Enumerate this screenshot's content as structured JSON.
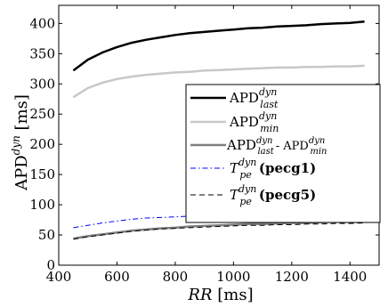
{
  "chart_data": {
    "type": "line",
    "xlabel": "RR [ms]",
    "ylabel": "APD^dyn [ms]",
    "xlim": [
      400,
      1500
    ],
    "ylim": [
      0,
      430
    ],
    "xticks": [
      400,
      600,
      800,
      1000,
      1200,
      1400
    ],
    "yticks": [
      0,
      50,
      100,
      150,
      200,
      250,
      300,
      350,
      400
    ],
    "grid": false,
    "legend_placement": "center-right",
    "x": [
      450,
      500,
      550,
      600,
      650,
      700,
      750,
      800,
      850,
      900,
      950,
      1000,
      1050,
      1100,
      1150,
      1200,
      1250,
      1300,
      1350,
      1400,
      1450
    ],
    "series": [
      {
        "name": "APD^dyn_last",
        "color": "#000000",
        "dash": "solid",
        "values": [
          322,
          340,
          352,
          361,
          368,
          373,
          377,
          381,
          384,
          386,
          388,
          390,
          392,
          393,
          395,
          396,
          397,
          399,
          400,
          401,
          403
        ]
      },
      {
        "name": "APD^dyn_min",
        "color": "#c8c8c8",
        "dash": "solid",
        "values": [
          278,
          293,
          302,
          308,
          312,
          315,
          317,
          319,
          320,
          322,
          323,
          324,
          325,
          326,
          327,
          327,
          328,
          328,
          329,
          329,
          330
        ]
      },
      {
        "name": "APD^dyn_last - APD^dyn_min",
        "color": "#7f7f7f",
        "dash": "solid",
        "values": [
          44,
          48,
          51,
          54,
          57,
          59,
          61,
          62,
          64,
          65,
          66,
          67,
          68,
          68,
          69,
          70,
          70,
          71,
          72,
          72,
          73
        ]
      },
      {
        "name": "T^dyn_pe (pecg1)",
        "color": "#0000ff",
        "dash": "dashdot",
        "values": [
          62,
          66,
          70,
          73,
          76,
          78,
          79,
          80,
          81,
          82,
          83,
          84,
          84,
          85,
          85,
          86,
          86,
          86,
          87,
          87,
          87
        ]
      },
      {
        "name": "T^dyn_pe (pecg5)",
        "color": "#000000",
        "dash": "dashed",
        "values": [
          43,
          47,
          50,
          53,
          56,
          58,
          60,
          61,
          62,
          63,
          64,
          65,
          66,
          66,
          67,
          67,
          68,
          68,
          69,
          69,
          70
        ]
      }
    ]
  },
  "labels": {
    "x_var": "RR",
    "x_unit": " [ms]",
    "y_main": "APD",
    "y_sup": "dyn",
    "y_unit": " [ms]"
  },
  "legend": [
    {
      "main": "APD",
      "sup": "dyn",
      "sub": "last",
      "tail": ""
    },
    {
      "main": "APD",
      "sup": "dyn",
      "sub": "min",
      "tail": ""
    },
    {
      "main": "APD",
      "sup": "dyn",
      "sub": "last",
      "mid": "- APD",
      "sup2": "dyn",
      "sub2": "min"
    },
    {
      "main": "T",
      "sup": "dyn",
      "sub": "pe",
      "paren": "(pecg1)"
    },
    {
      "main": "T",
      "sup": "dyn",
      "sub": "pe",
      "paren": "(pecg5)"
    }
  ]
}
